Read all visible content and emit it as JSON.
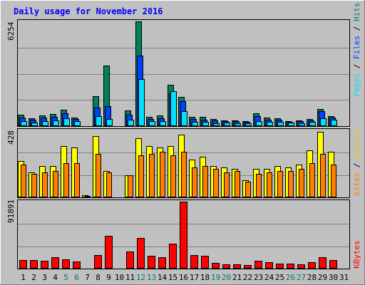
{
  "title": "Daily usage for November 2016",
  "y_scale_labels": {
    "hits_files_pages": "6254",
    "visits_sites": "428",
    "kbytes": "91891"
  },
  "legend": {
    "pages": "Pages",
    "files": "Files",
    "hits": "Hits",
    "sites": "Sites",
    "visits": "Visits",
    "kbytes": "KBytes",
    "sep": " / "
  },
  "colors": {
    "background": "#c0c0c0",
    "title": "#0000ff",
    "grid": "#808080",
    "hits": "#00805c",
    "files": "#0040ff",
    "pages": "#00e0ff",
    "visits": "#ffff00",
    "sites": "#ff8000",
    "kbytes": "#ff0000",
    "weekend_day": "#00805c",
    "weekday": "#000000"
  },
  "chart_data": [
    {
      "type": "bar",
      "ylim": [
        0,
        6254
      ],
      "categories": [
        "1",
        "2",
        "3",
        "4",
        "5",
        "6",
        "7",
        "8",
        "9",
        "10",
        "11",
        "12",
        "13",
        "14",
        "15",
        "16",
        "17",
        "18",
        "19",
        "20",
        "21",
        "22",
        "23",
        "24",
        "25",
        "26",
        "27",
        "28",
        "29",
        "30",
        "31"
      ],
      "weekend_categories": [
        "5",
        "6",
        "12",
        "13",
        "19",
        "20",
        "26",
        "27"
      ],
      "series": [
        {
          "name": "Hits",
          "values": [
            690,
            480,
            640,
            740,
            990,
            520,
            30,
            1780,
            3630,
            30,
            940,
            6254,
            570,
            620,
            2450,
            1740,
            550,
            550,
            410,
            330,
            340,
            300,
            750,
            520,
            450,
            310,
            340,
            440,
            1000,
            610,
            0
          ]
        },
        {
          "name": "Files",
          "values": [
            500,
            370,
            490,
            570,
            760,
            430,
            20,
            1120,
            1190,
            20,
            680,
            4210,
            440,
            470,
            1950,
            1510,
            440,
            400,
            330,
            280,
            280,
            250,
            580,
            400,
            370,
            260,
            280,
            360,
            900,
            520,
            0
          ]
        },
        {
          "name": "Pages",
          "values": [
            300,
            220,
            300,
            330,
            480,
            310,
            10,
            590,
            420,
            10,
            370,
            2800,
            290,
            280,
            2070,
            900,
            260,
            250,
            190,
            200,
            190,
            150,
            300,
            250,
            240,
            200,
            190,
            240,
            480,
            390,
            0
          ]
        }
      ]
    },
    {
      "type": "bar",
      "ylim": [
        0,
        428
      ],
      "categories": [
        "1",
        "2",
        "3",
        "4",
        "5",
        "6",
        "7",
        "8",
        "9",
        "10",
        "11",
        "12",
        "13",
        "14",
        "15",
        "16",
        "17",
        "18",
        "19",
        "20",
        "21",
        "22",
        "23",
        "24",
        "25",
        "26",
        "27",
        "28",
        "29",
        "30",
        "31"
      ],
      "series": [
        {
          "name": "Visits",
          "values": [
            230,
            160,
            200,
            200,
            330,
            320,
            15,
            390,
            170,
            0,
            140,
            380,
            330,
            320,
            330,
            400,
            240,
            260,
            200,
            190,
            180,
            110,
            180,
            180,
            200,
            190,
            210,
            300,
            420,
            290,
            0
          ]
        },
        {
          "name": "Sites",
          "values": [
            210,
            150,
            160,
            170,
            220,
            220,
            10,
            280,
            160,
            0,
            140,
            270,
            280,
            290,
            270,
            290,
            190,
            200,
            180,
            160,
            170,
            100,
            150,
            160,
            170,
            170,
            180,
            220,
            280,
            210,
            0
          ]
        }
      ]
    },
    {
      "type": "bar",
      "ylim": [
        0,
        91891
      ],
      "categories": [
        "1",
        "2",
        "3",
        "4",
        "5",
        "6",
        "7",
        "8",
        "9",
        "10",
        "11",
        "12",
        "13",
        "14",
        "15",
        "16",
        "17",
        "18",
        "19",
        "20",
        "21",
        "22",
        "23",
        "24",
        "25",
        "26",
        "27",
        "28",
        "29",
        "30",
        "31"
      ],
      "series": [
        {
          "name": "KBytes",
          "values": [
            11500,
            11800,
            11000,
            16000,
            12500,
            9800,
            1200,
            18800,
            45000,
            1200,
            23000,
            42000,
            17200,
            16000,
            34000,
            91891,
            19000,
            17500,
            7600,
            6200,
            6000,
            5200,
            11000,
            9000,
            6800,
            6500,
            6200,
            8800,
            16000,
            12000,
            0
          ]
        }
      ]
    }
  ]
}
